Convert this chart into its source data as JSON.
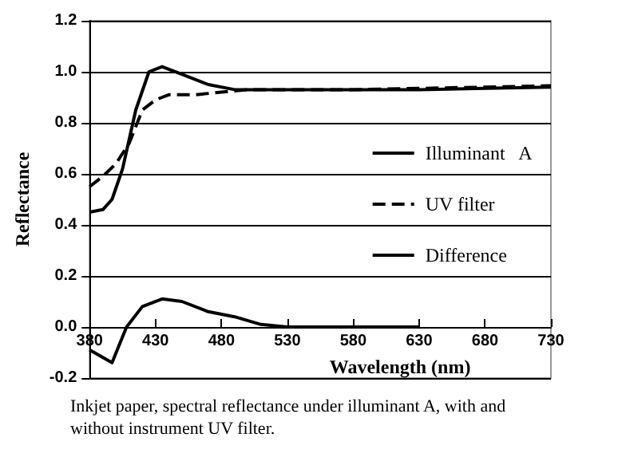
{
  "chart_data": {
    "type": "line",
    "xlabel": "Wavelength (nm)",
    "ylabel": "Reflectance",
    "xlim": [
      380,
      730
    ],
    "xticks": [
      380,
      430,
      480,
      530,
      580,
      630,
      680,
      730
    ],
    "ylim": [
      -0.2,
      1.2
    ],
    "yticks": [
      -0.2,
      {
        "value": 0,
        "label": "0.0"
      },
      0.2,
      0.4,
      0.6,
      0.8,
      {
        "value": 1,
        "label": "1.0"
      },
      1.2
    ],
    "series": [
      {
        "name": "Illuminant   A",
        "color": "#000000",
        "line_style": "solid",
        "x": [
          380,
          390,
          397,
          405,
          415,
          425,
          435,
          450,
          470,
          490,
          530,
          580,
          630,
          680,
          730
        ],
        "values": [
          0.45,
          0.46,
          0.5,
          0.62,
          0.85,
          1.0,
          1.02,
          0.99,
          0.95,
          0.93,
          0.93,
          0.93,
          0.93,
          0.935,
          0.94
        ]
      },
      {
        "name": "UV filter",
        "color": "#000000",
        "line_style": "dashed",
        "x": [
          380,
          390,
          400,
          410,
          420,
          430,
          440,
          460,
          480,
          500,
          530,
          580,
          630,
          680,
          730
        ],
        "values": [
          0.55,
          0.59,
          0.64,
          0.72,
          0.85,
          0.89,
          0.91,
          0.91,
          0.92,
          0.93,
          0.93,
          0.93,
          0.935,
          0.94,
          0.945
        ]
      },
      {
        "name": "Difference",
        "color": "#000000",
        "line_style": "solid",
        "x": [
          380,
          397,
          408,
          420,
          435,
          450,
          470,
          490,
          510,
          530,
          580,
          630
        ],
        "values": [
          -0.09,
          -0.14,
          0.0,
          0.08,
          0.11,
          0.1,
          0.06,
          0.04,
          0.01,
          0.0,
          0.0,
          0.0
        ]
      }
    ],
    "grid": "y",
    "legend": "right",
    "marker": "none",
    "annotations": [
      "Inkjet paper, spectral reflectance under illuminant A, with and without instrument UV filter."
    ]
  }
}
